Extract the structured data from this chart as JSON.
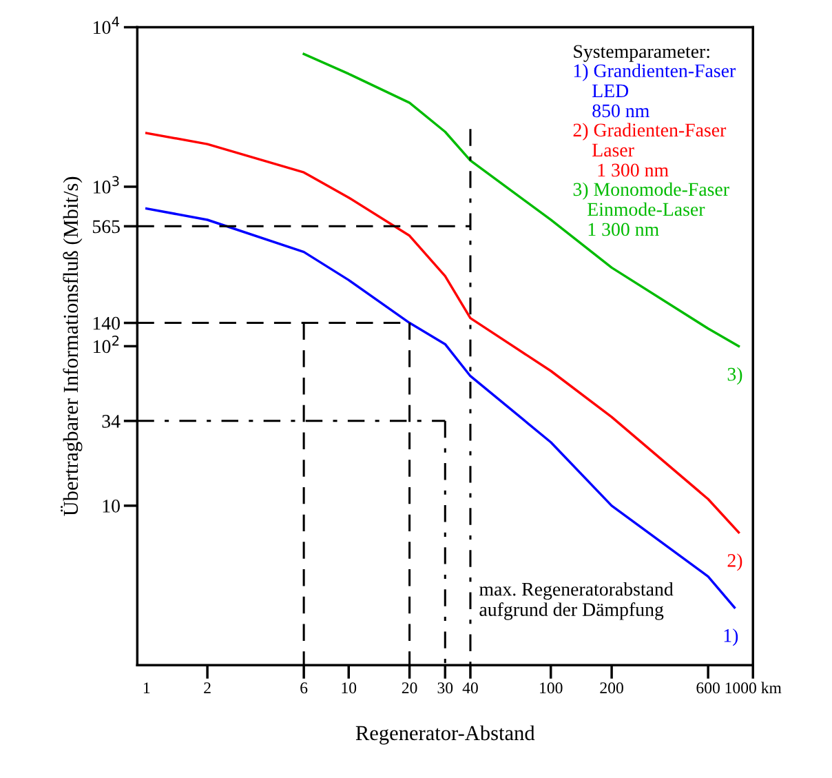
{
  "chart_data": {
    "type": "line",
    "xlabel": "Regenerator-Abstand",
    "ylabel": "Übertragbarer Informationsfluß (Mbit/s)",
    "log": "xy",
    "grid": false,
    "legend": "top right",
    "legend_title": "Systemparameter:",
    "line_style": "solid",
    "marker": "none",
    "xlim": [
      0.9,
      1000
    ],
    "ylim": [
      1,
      10000
    ],
    "xticks": [
      {
        "value": 1,
        "label": "1"
      },
      2,
      6,
      10,
      20,
      30,
      40,
      100,
      200,
      600,
      {
        "value": 1000,
        "label": "1000 km"
      }
    ],
    "yticks": [
      10,
      34,
      {
        "value": 100,
        "label": "10$^{2}$"
      },
      140,
      565,
      {
        "value": 1000,
        "label": "10$^{3}$"
      },
      {
        "value": 10000,
        "label": "10$^{4}$"
      }
    ],
    "series": [
      {
        "name": "1) Grandienten-Faser\n    LED\n    850 nm",
        "color": "#0000ff",
        "x": [
          1,
          2,
          6,
          10,
          20,
          30,
          40,
          100,
          200,
          600,
          810
        ],
        "values": [
          730,
          620,
          390,
          260,
          140,
          103,
          65,
          25,
          10,
          3.6,
          2.3
        ]
      },
      {
        "name": "2) Gradienten-Faser\n    Laser\n     1 300 nm",
        "color": "#ff0000",
        "x": [
          1,
          2,
          6,
          10,
          20,
          30,
          40,
          100,
          200,
          600,
          850
        ],
        "values": [
          2170,
          1850,
          1230,
          855,
          493,
          275,
          150,
          70,
          36,
          11,
          6.8
        ]
      },
      {
        "name": "3) Monomode-Faser\n   Einmode-Laser\n   1 300 nm",
        "color": "#00bb00",
        "x": [
          6,
          10,
          20,
          30,
          40,
          100,
          200,
          600,
          850
        ],
        "values": [
          6800,
          5100,
          3360,
          2210,
          1460,
          621,
          311,
          129,
          100
        ]
      },
      {
        "color": "#000000",
        "line_style": "dashed",
        "x": [
          0.9,
          40
        ],
        "values": [
          565,
          565
        ]
      },
      {
        "color": "#000000",
        "line_style": "dashed",
        "x": [
          0.9,
          20
        ],
        "values": [
          140,
          140
        ]
      },
      {
        "color": "#000000",
        "line_style": "dashed",
        "x": [
          6,
          6
        ],
        "values": [
          140,
          1
        ]
      },
      {
        "color": "#000000",
        "line_style": "dashed",
        "x": [
          20,
          20
        ],
        "values": [
          140,
          1
        ]
      },
      {
        "color": "#000000",
        "line_style": "dashdot",
        "x": [
          0.9,
          30
        ],
        "values": [
          34,
          34
        ]
      },
      {
        "color": "#000000",
        "line_style": "dashdot",
        "x": [
          30,
          30
        ],
        "values": [
          34,
          1
        ]
      },
      {
        "color": "#000000",
        "line_style": "dashdot",
        "x": [
          40,
          40
        ],
        "values": [
          2300,
          1
        ]
      }
    ],
    "annotations": [
      "max. Regeneratorabstand\naufgrund der Dämpfung",
      "1)",
      "2)",
      "3)"
    ]
  }
}
